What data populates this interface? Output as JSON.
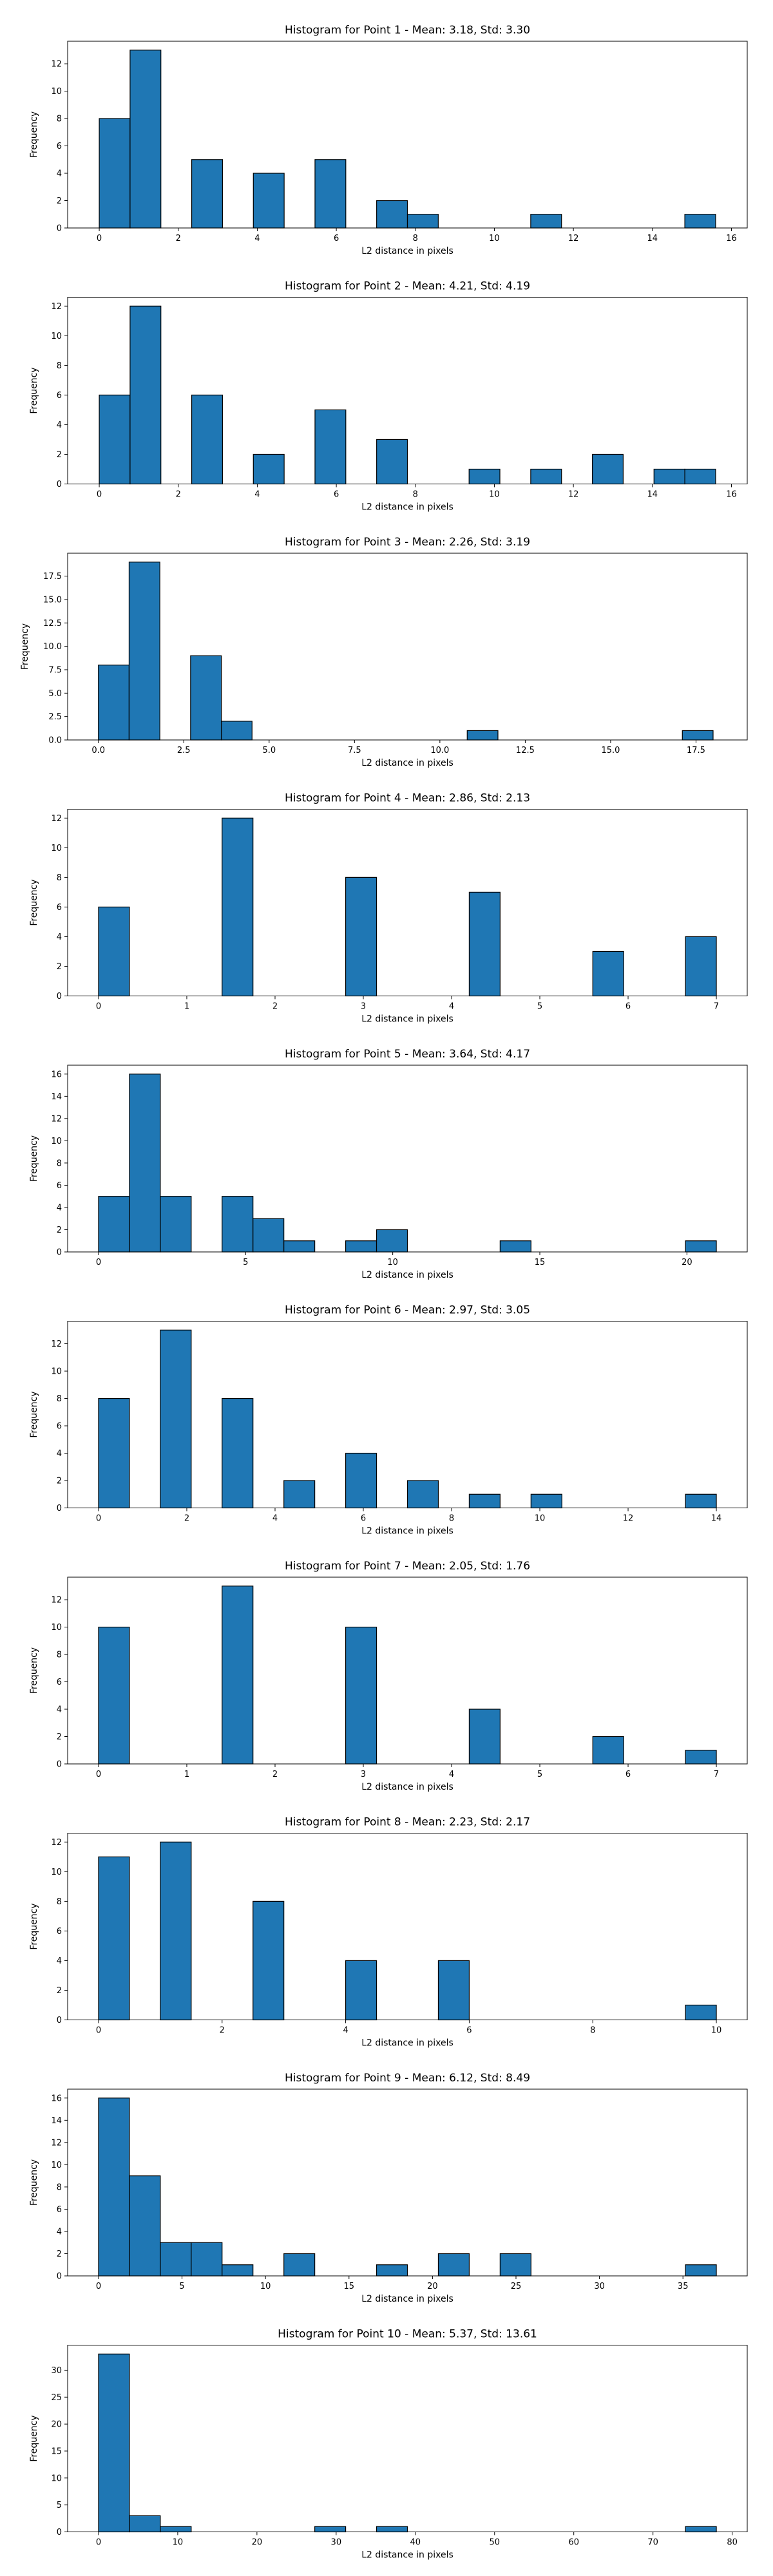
{
  "chart_data": [
    {
      "type": "bar",
      "title": "Histogram for Point 1 - Mean: 3.18, Std: 3.30",
      "xlabel": "L2 distance in pixels",
      "ylabel": "Frequency",
      "xlim": [
        -0.8,
        16.4
      ],
      "ylim": [
        0,
        13.65
      ],
      "xticks": [
        0,
        2,
        4,
        6,
        8,
        10,
        12,
        14,
        16
      ],
      "yticks": [
        0,
        2,
        4,
        6,
        8,
        10,
        12
      ],
      "bin_start": 0,
      "bin_width": 0.78,
      "counts": [
        8,
        13,
        0,
        5,
        0,
        4,
        0,
        5,
        0,
        2,
        1,
        0,
        0,
        0,
        1,
        0,
        0,
        0,
        0,
        1
      ]
    },
    {
      "type": "bar",
      "title": "Histogram for Point 2 - Mean: 4.21, Std: 4.19",
      "xlabel": "L2 distance in pixels",
      "ylabel": "Frequency",
      "xlim": [
        -0.8,
        16.4
      ],
      "ylim": [
        0,
        12.6
      ],
      "xticks": [
        0,
        2,
        4,
        6,
        8,
        10,
        12,
        14,
        16
      ],
      "yticks": [
        0,
        2,
        4,
        6,
        8,
        10,
        12
      ],
      "bin_start": 0,
      "bin_width": 0.78,
      "counts": [
        6,
        12,
        0,
        6,
        0,
        2,
        0,
        5,
        0,
        3,
        0,
        0,
        1,
        0,
        1,
        0,
        2,
        0,
        1,
        1
      ]
    },
    {
      "type": "bar",
      "title": "Histogram for Point 3 - Mean: 2.26, Std: 3.19",
      "xlabel": "L2 distance in pixels",
      "ylabel": "Frequency",
      "xlim": [
        -0.9,
        19.0
      ],
      "ylim": [
        0,
        19.95
      ],
      "xticks": [
        0.0,
        2.5,
        5.0,
        7.5,
        10.0,
        12.5,
        15.0,
        17.5
      ],
      "xtick_labels": [
        "0.0",
        "2.5",
        "5.0",
        "7.5",
        "10.0",
        "12.5",
        "15.0",
        "17.5"
      ],
      "yticks": [
        0.0,
        2.5,
        5.0,
        7.5,
        10.0,
        12.5,
        15.0,
        17.5
      ],
      "ytick_labels": [
        "0.0",
        "2.5",
        "5.0",
        "7.5",
        "10.0",
        "12.5",
        "15.0",
        "17.5"
      ],
      "bin_start": 0,
      "bin_width": 0.9,
      "counts": [
        8,
        19,
        0,
        9,
        2,
        0,
        0,
        0,
        0,
        0,
        0,
        0,
        1,
        0,
        0,
        0,
        0,
        0,
        0,
        1
      ]
    },
    {
      "type": "bar",
      "title": "Histogram for Point 4 - Mean: 2.86, Std: 2.13",
      "xlabel": "L2 distance in pixels",
      "ylabel": "Frequency",
      "xlim": [
        -0.35,
        7.35
      ],
      "ylim": [
        0,
        12.6
      ],
      "xticks": [
        0,
        1,
        2,
        3,
        4,
        5,
        6,
        7
      ],
      "yticks": [
        0,
        2,
        4,
        6,
        8,
        10,
        12
      ],
      "bin_start": 0,
      "bin_width": 0.35,
      "counts": [
        6,
        0,
        0,
        0,
        12,
        0,
        0,
        0,
        8,
        0,
        0,
        0,
        7,
        0,
        0,
        0,
        3,
        0,
        0,
        4
      ]
    },
    {
      "type": "bar",
      "title": "Histogram for Point 5 - Mean: 3.64, Std: 4.17",
      "xlabel": "L2 distance in pixels",
      "ylabel": "Frequency",
      "xlim": [
        -1.05,
        22.05
      ],
      "ylim": [
        0,
        16.8
      ],
      "xticks": [
        0,
        5,
        10,
        15,
        20
      ],
      "yticks": [
        0,
        2,
        4,
        6,
        8,
        10,
        12,
        14,
        16
      ],
      "bin_start": 0,
      "bin_width": 1.05,
      "counts": [
        5,
        16,
        5,
        0,
        5,
        3,
        1,
        0,
        1,
        2,
        0,
        0,
        0,
        1,
        0,
        0,
        0,
        0,
        0,
        1
      ]
    },
    {
      "type": "bar",
      "title": "Histogram for Point 6 - Mean: 2.97, Std: 3.05",
      "xlabel": "L2 distance in pixels",
      "ylabel": "Frequency",
      "xlim": [
        -0.7,
        14.7
      ],
      "ylim": [
        0,
        13.65
      ],
      "xticks": [
        0,
        2,
        4,
        6,
        8,
        10,
        12,
        14
      ],
      "yticks": [
        0,
        2,
        4,
        6,
        8,
        10,
        12
      ],
      "bin_start": 0,
      "bin_width": 0.7,
      "counts": [
        8,
        0,
        13,
        0,
        8,
        0,
        2,
        0,
        4,
        0,
        2,
        0,
        1,
        0,
        1,
        0,
        0,
        0,
        0,
        1
      ]
    },
    {
      "type": "bar",
      "title": "Histogram for Point 7 - Mean: 2.05, Std: 1.76",
      "xlabel": "L2 distance in pixels",
      "ylabel": "Frequency",
      "xlim": [
        -0.35,
        7.35
      ],
      "ylim": [
        0,
        13.65
      ],
      "xticks": [
        0,
        1,
        2,
        3,
        4,
        5,
        6,
        7
      ],
      "yticks": [
        0,
        2,
        4,
        6,
        8,
        10,
        12
      ],
      "bin_start": 0,
      "bin_width": 0.35,
      "counts": [
        10,
        0,
        0,
        0,
        13,
        0,
        0,
        0,
        10,
        0,
        0,
        0,
        4,
        0,
        0,
        0,
        2,
        0,
        0,
        1
      ]
    },
    {
      "type": "bar",
      "title": "Histogram for Point 8 - Mean: 2.23, Std: 2.17",
      "xlabel": "L2 distance in pixels",
      "ylabel": "Frequency",
      "xlim": [
        -0.5,
        10.5
      ],
      "ylim": [
        0,
        12.6
      ],
      "xticks": [
        0,
        2,
        4,
        6,
        8,
        10
      ],
      "yticks": [
        0,
        2,
        4,
        6,
        8,
        10,
        12
      ],
      "bin_start": 0,
      "bin_width": 0.5,
      "counts": [
        11,
        0,
        12,
        0,
        0,
        8,
        0,
        0,
        4,
        0,
        0,
        4,
        0,
        0,
        0,
        0,
        0,
        0,
        0,
        1
      ]
    },
    {
      "type": "bar",
      "title": "Histogram for Point 9 - Mean: 6.12, Std: 8.49",
      "xlabel": "L2 distance in pixels",
      "ylabel": "Frequency",
      "xlim": [
        -1.85,
        38.85
      ],
      "ylim": [
        0,
        16.8
      ],
      "xticks": [
        0,
        5,
        10,
        15,
        20,
        25,
        30,
        35
      ],
      "yticks": [
        0,
        2,
        4,
        6,
        8,
        10,
        12,
        14,
        16
      ],
      "bin_start": 0,
      "bin_width": 1.85,
      "counts": [
        16,
        9,
        3,
        3,
        1,
        0,
        2,
        0,
        0,
        1,
        0,
        2,
        0,
        2,
        0,
        0,
        0,
        0,
        0,
        1
      ]
    },
    {
      "type": "bar",
      "title": "Histogram for Point 10 - Mean: 5.37, Std: 13.61",
      "xlabel": "L2 distance in pixels",
      "ylabel": "Frequency",
      "xlim": [
        -3.9,
        81.9
      ],
      "ylim": [
        0,
        34.65
      ],
      "xticks": [
        0,
        10,
        20,
        30,
        40,
        50,
        60,
        70,
        80
      ],
      "yticks": [
        0,
        5,
        10,
        15,
        20,
        25,
        30
      ],
      "bin_start": 0,
      "bin_width": 3.9,
      "counts": [
        33,
        3,
        1,
        0,
        0,
        0,
        0,
        1,
        0,
        1,
        0,
        0,
        0,
        0,
        0,
        0,
        0,
        0,
        0,
        1
      ]
    }
  ]
}
